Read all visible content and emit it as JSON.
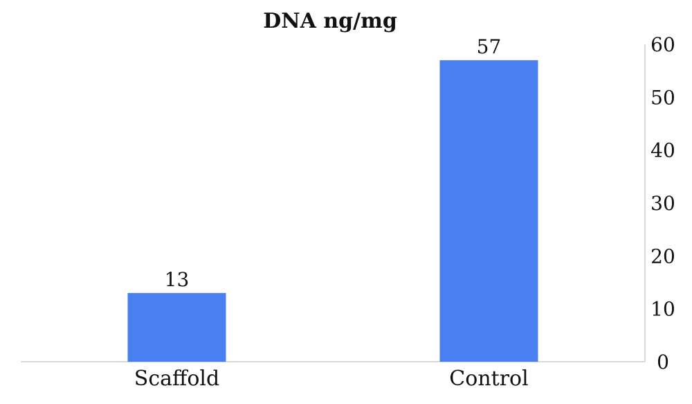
{
  "chart_data": {
    "type": "bar",
    "title": "DNA ng/mg",
    "categories": [
      "Scaffold",
      "Control"
    ],
    "values": [
      13,
      57
    ],
    "data_labels": [
      "13",
      "57"
    ],
    "ylim": [
      0,
      60
    ],
    "yticks": [
      "0",
      "10",
      "20",
      "30",
      "40",
      "50",
      "60"
    ],
    "y_axis_position": "right",
    "grid": false,
    "legend": "none",
    "bar_color": "#4a7ff0",
    "axis_color": "#d9d9d9"
  }
}
